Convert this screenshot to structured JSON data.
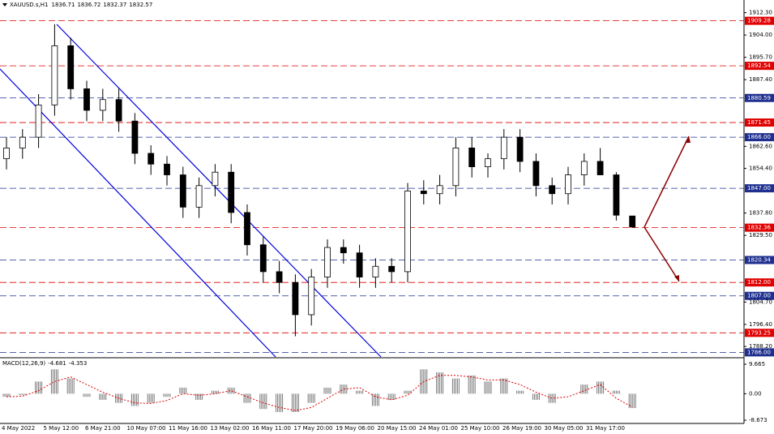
{
  "chart_data": [
    {
      "type": "candlestick",
      "title": "XAUUSD.s,H1",
      "open": [
        1858,
        1862,
        1866,
        1878,
        1900,
        1884,
        1876,
        1880,
        1872,
        1860,
        1856,
        1852,
        1840,
        1848,
        1853,
        1838,
        1826,
        1816,
        1812,
        1800,
        1814,
        1825,
        1823,
        1814,
        1818,
        1816,
        1846,
        1845,
        1848,
        1862,
        1855,
        1858,
        1866,
        1857,
        1848,
        1845,
        1852,
        1857,
        1852,
        1836.71
      ],
      "high": [
        1866,
        1869,
        1882,
        1908,
        1903,
        1887,
        1884,
        1884,
        1875,
        1863,
        1859,
        1855,
        1851,
        1856,
        1856,
        1841,
        1829,
        1820,
        1815,
        1817,
        1828,
        1828,
        1826,
        1821,
        1821,
        1849,
        1850,
        1852,
        1866,
        1866,
        1860,
        1869,
        1869,
        1860,
        1851,
        1855,
        1860,
        1862,
        1853,
        1836.72
      ],
      "low": [
        1854,
        1858,
        1862,
        1874,
        1880,
        1872,
        1872,
        1868,
        1856,
        1852,
        1848,
        1836,
        1836,
        1844,
        1834,
        1822,
        1812,
        1808,
        1792,
        1796,
        1810,
        1819,
        1810,
        1810,
        1812,
        1812,
        1841,
        1841,
        1844,
        1851,
        1851,
        1854,
        1853,
        1844,
        1841,
        1841,
        1848,
        1853,
        1835,
        1832.37
      ],
      "close": [
        1862,
        1866,
        1878,
        1900,
        1884,
        1876,
        1880,
        1872,
        1860,
        1856,
        1852,
        1840,
        1848,
        1853,
        1838,
        1826,
        1816,
        1812,
        1800,
        1814,
        1825,
        1823,
        1814,
        1818,
        1816,
        1846,
        1845,
        1848,
        1862,
        1855,
        1858,
        1866,
        1857,
        1848,
        1845,
        1852,
        1857,
        1852,
        1837,
        1832.57
      ],
      "ylim": [
        1784.3,
        1914.6
      ],
      "yticks": [
        {
          "value": 1912.3,
          "label": "1912.30"
        },
        {
          "value": 1904,
          "label": "1904.00"
        },
        {
          "value": 1895.7,
          "label": "1895.70"
        },
        {
          "value": 1887.4,
          "label": "1887.40"
        },
        {
          "value": 1862.6,
          "label": "1862.60"
        },
        {
          "value": 1854.4,
          "label": "1854.40"
        },
        {
          "value": 1837.8,
          "label": "1837.80"
        },
        {
          "value": 1829.5,
          "label": "1829.50"
        },
        {
          "value": 1804.7,
          "label": "1804.70"
        },
        {
          "value": 1796.4,
          "label": "1796.40"
        },
        {
          "value": 1788.2,
          "label": "1788.20"
        }
      ],
      "levels": [
        {
          "value": 1909.28,
          "label": "1909.28",
          "color": "#e00000"
        },
        {
          "value": 1892.54,
          "label": "1892.54",
          "color": "#e00000"
        },
        {
          "value": 1880.59,
          "label": "1880.59",
          "color": "#1f2f8f"
        },
        {
          "value": 1871.45,
          "label": "1871.45",
          "color": "#e00000"
        },
        {
          "value": 1866,
          "label": "1866.00",
          "color": "#1f2f8f"
        },
        {
          "value": 1847,
          "label": "1847.00",
          "color": "#1f2f8f"
        },
        {
          "value": 1832.36,
          "label": "1832.36",
          "color": "#e00000"
        },
        {
          "value": 1820.34,
          "label": "1820.34",
          "color": "#1f2f8f"
        },
        {
          "value": 1812,
          "label": "1812.00",
          "color": "#e00000"
        },
        {
          "value": 1807,
          "label": "1807.00",
          "color": "#1f2f8f"
        },
        {
          "value": 1793.25,
          "label": "1793.25",
          "color": "#e00000"
        },
        {
          "value": 1786,
          "label": "1786.00",
          "color": "#1f2f8f"
        }
      ],
      "x_labels": [
        "4 May 2022",
        "5 May 12:00",
        "6 May 21:00",
        "10 May 07:00",
        "11 May 16:00",
        "13 May 02:00",
        "16 May 11:00",
        "17 May 20:00",
        "19 May 06:00",
        "20 May 15:00",
        "24 May 01:00",
        "25 May 10:00",
        "26 May 19:00",
        "30 May 05:00",
        "31 May 17:00"
      ]
    },
    {
      "type": "macd",
      "title": "MACD(12,26,9)",
      "values": [
        -1,
        -0.5,
        4,
        8,
        5,
        -1,
        -2,
        -3,
        -4,
        -3,
        -1,
        2,
        -2,
        1,
        2,
        -3,
        -5,
        -6,
        -6,
        -3,
        2,
        3,
        1,
        -4,
        -2,
        1,
        8,
        7,
        5,
        6,
        4,
        5,
        1,
        -2,
        -3,
        0,
        3,
        4,
        1,
        -4.681
      ],
      "signal": [
        -1,
        -0.8,
        1,
        4,
        5.5,
        3,
        0.5,
        -1.5,
        -3,
        -3.2,
        -2.2,
        0,
        -0.5,
        0,
        1,
        -1,
        -3,
        -4.5,
        -5.5,
        -4.5,
        -1.5,
        1.5,
        2,
        -1,
        -2,
        -0.5,
        4,
        6,
        6,
        5.5,
        4.5,
        4.5,
        3,
        0.5,
        -1.5,
        -1,
        1,
        3,
        -1.5,
        -4.353
      ],
      "ylim": [
        -9.74,
        11.26
      ],
      "yticks": [
        9.665,
        {
          "value": 0,
          "label": "0.00"
        },
        -8.673
      ]
    }
  ]
}
